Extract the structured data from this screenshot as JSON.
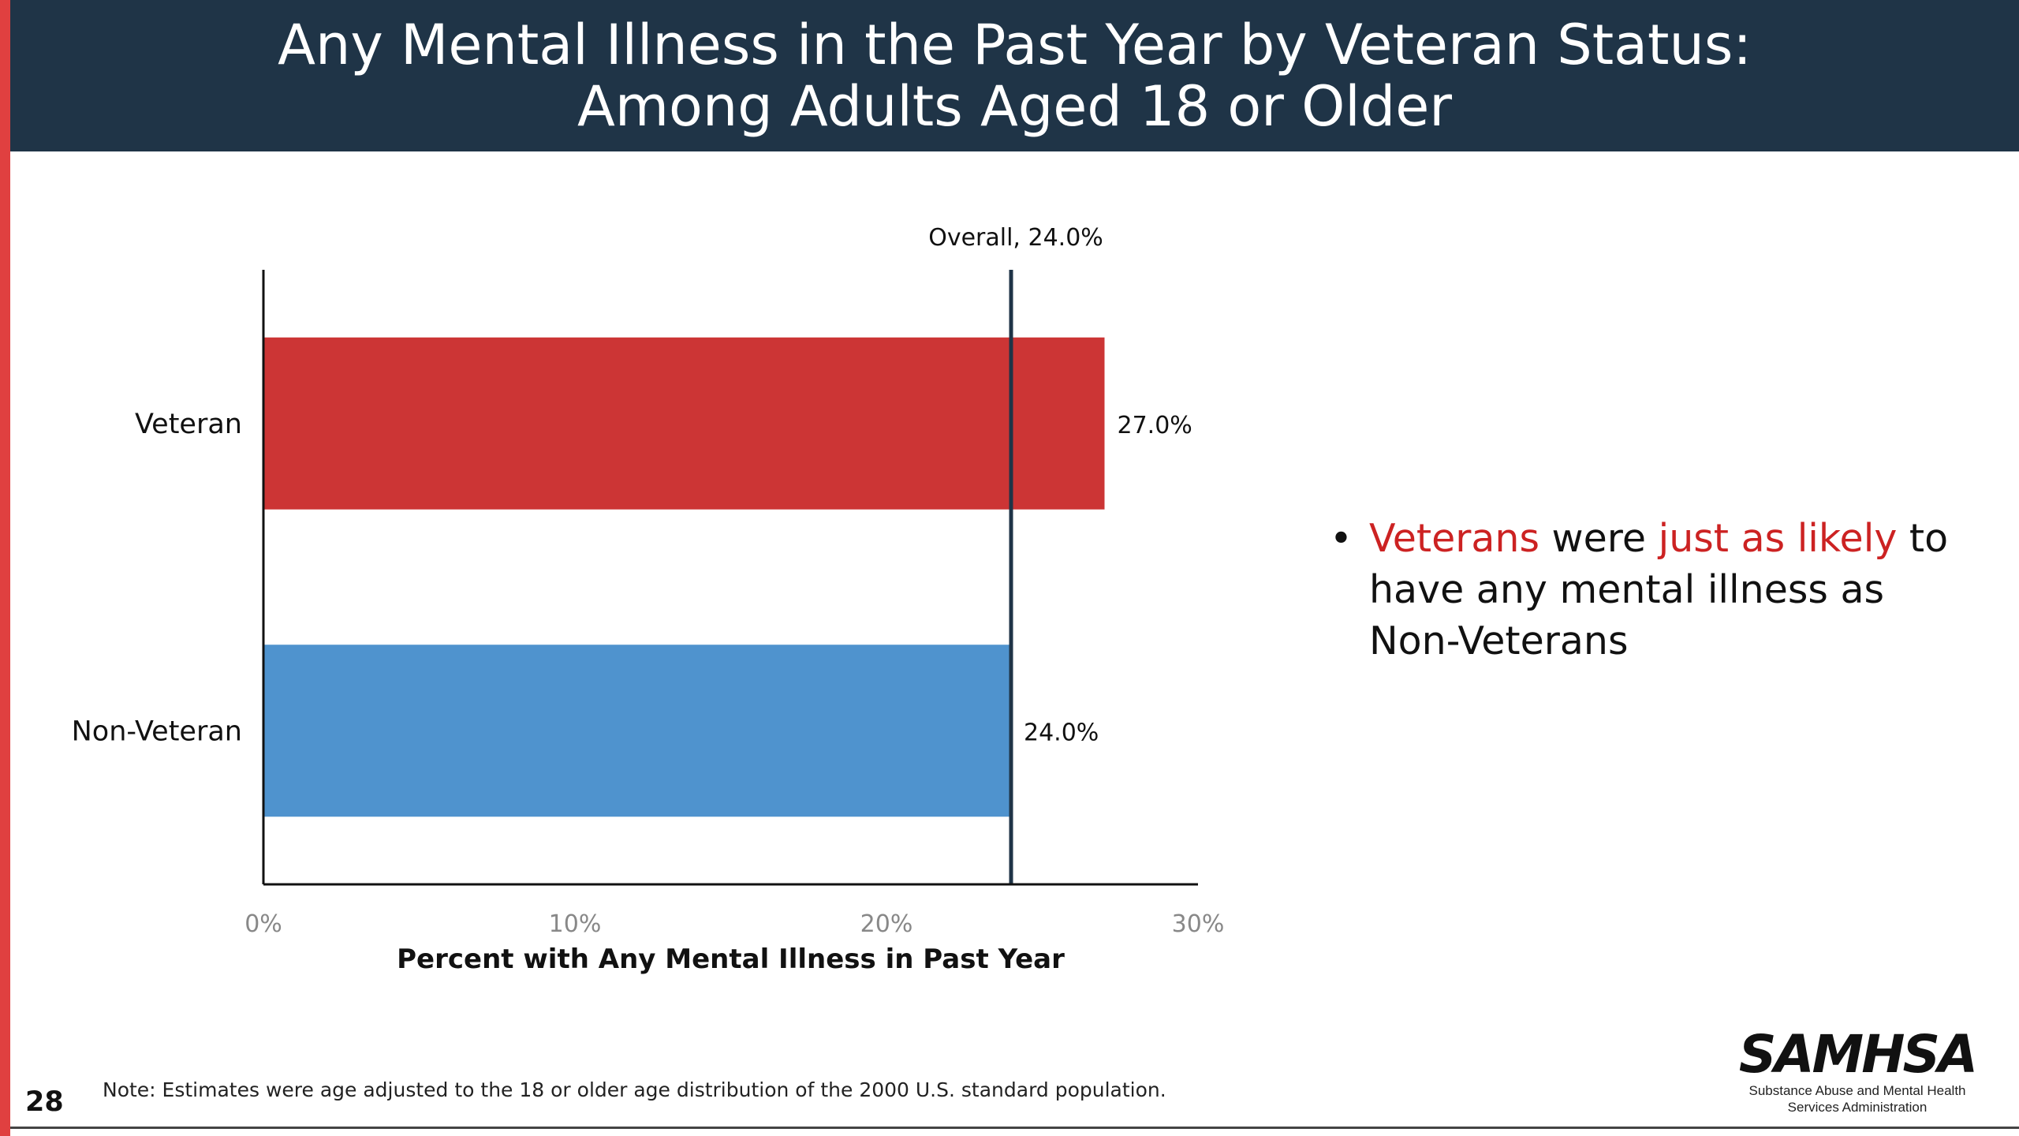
{
  "slide": {
    "title_line1": "Any Mental Illness in the Past Year by Veteran Status:",
    "title_line2": "Among Adults Aged 18 or Older",
    "page_number": "28",
    "note": "Note: Estimates were age adjusted to the 18 or older age distribution of the 2000 U.S. standard population.",
    "bullet": {
      "marker": "•",
      "parts": [
        "Veterans",
        " were ",
        "just as likely",
        " to have any mental illness as Non-Veterans"
      ]
    },
    "logo": {
      "wordmark": "SAMHSA",
      "subtitle_line1": "Substance Abuse and Mental Health",
      "subtitle_line2": "Services Administration"
    },
    "colors": {
      "header_bg": "#1f3447",
      "accent_red": "#cc2222",
      "left_stripe": "#e04040"
    }
  },
  "chart_data": {
    "type": "bar",
    "orientation": "horizontal",
    "categories": [
      "Veteran",
      "Non-Veteran"
    ],
    "values": [
      27.0,
      24.0
    ],
    "data_labels": [
      "27.0%",
      "24.0%"
    ],
    "colors": [
      "#cc3535",
      "#4f93ce"
    ],
    "xlabel": "Percent with Any Mental Illness in Past Year",
    "xlim": [
      0,
      30
    ],
    "xticks": [
      0,
      10,
      20,
      30
    ],
    "xtick_labels": [
      "0%",
      "10%",
      "20%",
      "30%"
    ],
    "reference_line": {
      "value": 24.0,
      "label": "Overall, 24.0%",
      "color": "#1f3447"
    },
    "grid": false,
    "legend": "none"
  }
}
